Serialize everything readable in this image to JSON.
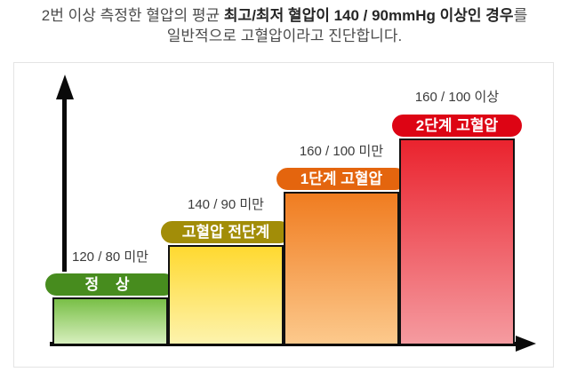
{
  "heading": {
    "line1_regular": "2번 이상 측정한 혈압의 평균 ",
    "line1_bold": "최고/최저 혈압이 140 / 90mmHg 이상인 경우",
    "line1_suffix": "를",
    "line2": "일반적으로 고혈압이라고 진단합니다."
  },
  "chart_data": {
    "type": "bar",
    "title": "2번 이상 측정한 혈압의 평균 최고/최저 혈압이 140 / 90mmHg 이상인 경우를 일반적으로 고혈압이라고 진단합니다.",
    "xlabel": "",
    "ylabel": "",
    "grid": false,
    "legend": false,
    "axes_style": "black arrows on x and y, no tick labels",
    "categories": [
      "정 상",
      "고혈압 전단계",
      "1단계 고혈압",
      "2단계 고혈압"
    ],
    "range_labels": [
      "120 / 80 미만",
      "140 / 90 미만",
      "160 / 100 미만",
      "160 / 100 이상"
    ],
    "values": [
      1,
      2,
      3,
      4
    ],
    "bars": [
      {
        "stage": "정 상",
        "range": "120 / 80 미만",
        "level": 1,
        "badge_color": "#478c1e",
        "bar_gradient_top": "#79bf47",
        "bar_gradient_bottom": "#d7efbe"
      },
      {
        "stage": "고혈압 전단계",
        "range": "140 / 90 미만",
        "level": 2,
        "badge_color": "#a28d08",
        "bar_gradient_top": "#ffd930",
        "bar_gradient_bottom": "#fdf3ad"
      },
      {
        "stage": "1단계 고혈압",
        "range": "160 / 100 미만",
        "level": 3,
        "badge_color": "#e4650e",
        "bar_gradient_top": "#f07c20",
        "bar_gradient_bottom": "#fcc98c"
      },
      {
        "stage": "2단계 고혈압",
        "range": "160 / 100 이상",
        "level": 4,
        "badge_color": "#dd0414",
        "bar_gradient_top": "#ea232e",
        "bar_gradient_bottom": "#f59ba0"
      }
    ]
  }
}
